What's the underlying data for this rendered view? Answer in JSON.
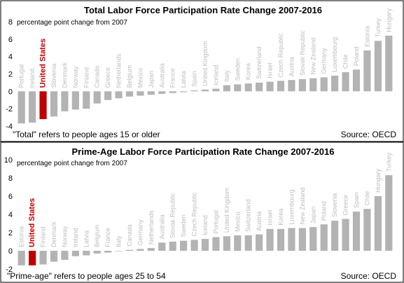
{
  "chart_data": [
    {
      "type": "bar",
      "title": "Total Labor Force Participation Rate Change 2007-2016",
      "ylabel": "percentage point change from 2007",
      "ylim": [
        -4,
        8
      ],
      "yticks": [
        -4,
        -2,
        0,
        2,
        4,
        6,
        8
      ],
      "grid": false,
      "highlight": "United States",
      "bar_color": "#b3b3b3",
      "highlight_color": "#c00000",
      "categories": [
        "Portugal",
        "Ireland",
        "United States",
        "Slovenia",
        "Denmark",
        "Norway",
        "Finland",
        "Canada",
        "Greece",
        "Netherlands",
        "Belgium",
        "Mexico",
        "Japan",
        "Australia",
        "France",
        "Latvia",
        "Spain",
        "United Kingdom",
        "Iceland",
        "Italy",
        "Sweden",
        "Korea",
        "Switzerland",
        "Israel",
        "Czech Republic",
        "Austria",
        "Slovak Republic",
        "New Zealand",
        "Germany",
        "Luxembourg",
        "Chile",
        "Poland",
        "Estonia",
        "Turkey",
        "Hungary"
      ],
      "values": [
        -3.7,
        -3.6,
        -3.2,
        -2.9,
        -2.3,
        -2.1,
        -2.0,
        -1.4,
        -1.0,
        -0.8,
        -0.6,
        -0.5,
        -0.4,
        -0.3,
        -0.2,
        -0.1,
        0.1,
        0.2,
        0.3,
        0.7,
        0.8,
        0.9,
        1.0,
        1.1,
        1.2,
        1.3,
        1.4,
        1.5,
        1.6,
        1.8,
        2.2,
        2.5,
        4.7,
        5.8,
        6.4
      ],
      "footnote_left": "\"Total\" refers to people ages 15 or older",
      "footnote_right": "Source: OECD"
    },
    {
      "type": "bar",
      "title": "Prime-Age Labor Force Participation Rate Change 2007-2016",
      "ylabel": "percentage point change from 2007",
      "ylim": [
        -2,
        10
      ],
      "yticks": [
        -2,
        0,
        2,
        4,
        6,
        8,
        10
      ],
      "grid": false,
      "highlight": "United States",
      "bar_color": "#b3b3b3",
      "highlight_color": "#c00000",
      "categories": [
        "Estonia",
        "United States",
        "Finland",
        "Denmark",
        "Norway",
        "Ireland",
        "Latvia",
        "Belgium",
        "France",
        "Italy",
        "Canada",
        "Germany",
        "Netherlands",
        "Australia",
        "Slovak Republic",
        "Sweden",
        "Czech Republic",
        "Iceland",
        "Portugal",
        "United Kingdom",
        "Mexico",
        "Switzerland",
        "Austria",
        "Israel",
        "Korea",
        "Luxembourg",
        "New Zealand",
        "Japan",
        "Poland",
        "Slovenia",
        "Greece",
        "Spain",
        "Chile",
        "Hungary",
        "Turkey"
      ],
      "values": [
        -1.6,
        -1.6,
        -1.5,
        -1.2,
        -1.0,
        -0.6,
        -0.5,
        -0.3,
        -0.2,
        0.0,
        0.1,
        0.2,
        0.3,
        0.9,
        1.0,
        1.1,
        1.2,
        1.3,
        1.5,
        1.6,
        1.7,
        1.7,
        1.8,
        2.4,
        2.4,
        2.5,
        2.5,
        2.6,
        2.9,
        3.3,
        3.5,
        4.3,
        4.6,
        6.0,
        8.3
      ],
      "footnote_left": "\"Prime-age\" refers to people ages 25 to 54",
      "footnote_right": "Source: OECD"
    }
  ]
}
